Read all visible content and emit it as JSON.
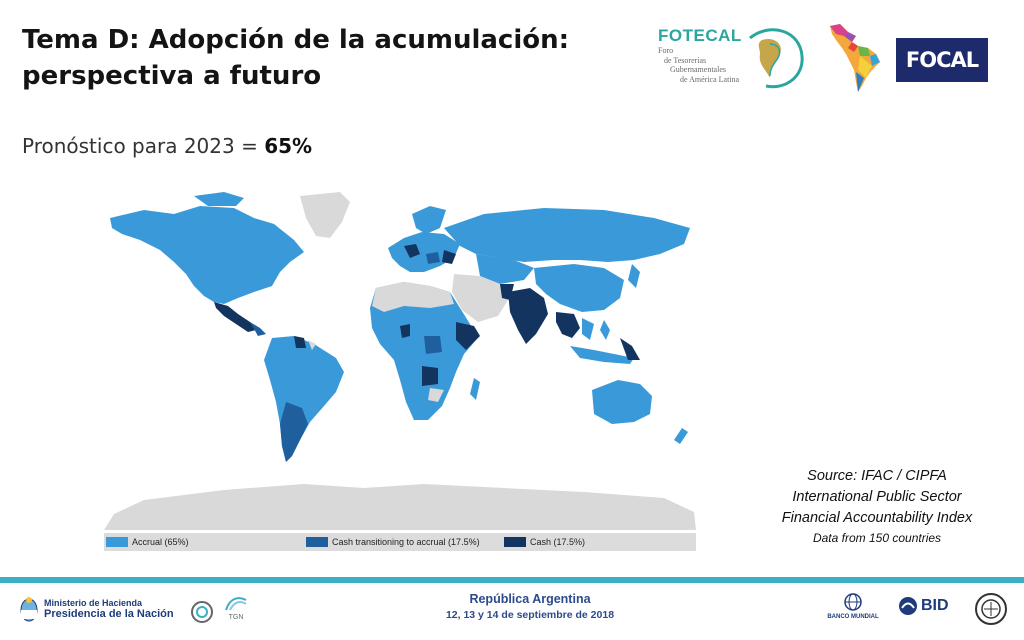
{
  "slide": {
    "title_line1": "Tema D: Adopción de la acumulación:",
    "title_line2": "perspectiva a futuro",
    "subtitle_prefix": "Pronóstico para 2023 = ",
    "subtitle_value": "65%"
  },
  "logos": {
    "fotecal_name": "FOTECAL",
    "fotecal_line1": "Foro",
    "fotecal_line2": "de Tesorerías",
    "fotecal_line3": "Gubernamentales",
    "fotecal_line4": "de América Latina",
    "focal": "FOCAL"
  },
  "legend": {
    "accrual": "Accrual (65%)",
    "transition": "Cash transitioning to accrual (17.5%)",
    "cash": "Cash (17.5%)"
  },
  "source": {
    "line1": "Source: IFAC / CIPFA",
    "line2": "International Public Sector",
    "line3": "Financial Accountability Index",
    "line4": "Data from 150 countries"
  },
  "footer": {
    "ministerio_line1": "Ministerio de Hacienda",
    "ministerio_line2": "Presidencia de la Nación",
    "tgn": "TGN",
    "event_line1": "República Argentina",
    "event_line2": "12, 13 y 14 de septiembre de 2018",
    "banco_mundial": "BANCO MUNDIAL",
    "bid": "BID"
  },
  "colors": {
    "accrual": "#3a9ad9",
    "transition": "#1f5f9e",
    "cash": "#13345f",
    "no_data": "#d9d9d9",
    "footer_bar": "#3ab0c3"
  }
}
